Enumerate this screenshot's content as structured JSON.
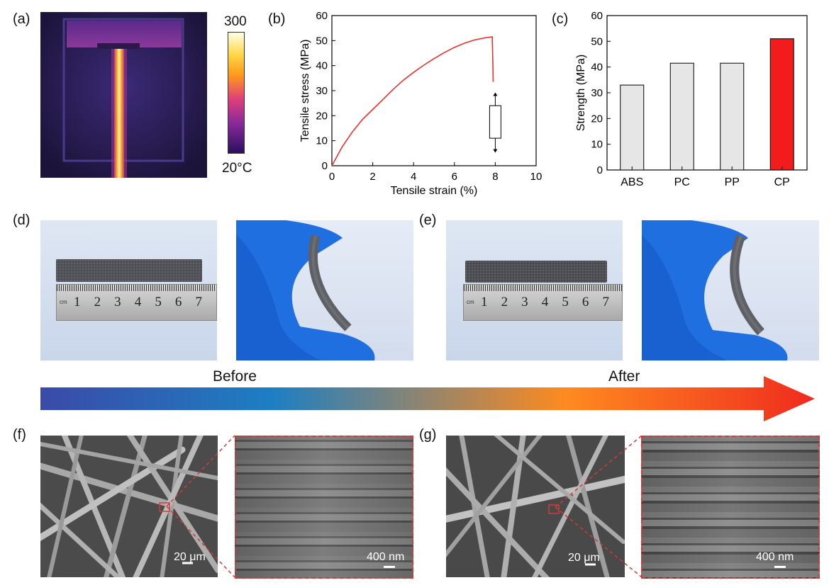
{
  "panels": {
    "a": {
      "label": "(a)",
      "colorbar": {
        "max_label": "300",
        "min_label": "20",
        "unit": "°C"
      }
    },
    "b": {
      "label": "(b)"
    },
    "c": {
      "label": "(c)"
    },
    "d": {
      "label": "(d)",
      "ruler": {
        "unit": "cm",
        "numbers": [
          "1",
          "2",
          "3",
          "4",
          "5",
          "6",
          "7"
        ]
      }
    },
    "e": {
      "label": "(e)",
      "ruler": {
        "unit": "cm",
        "numbers": [
          "1",
          "2",
          "3",
          "4",
          "5",
          "6",
          "7"
        ]
      }
    },
    "f": {
      "label": "(f)",
      "scale_bar_1": "20 μm",
      "scale_bar_2": "400 nm"
    },
    "g": {
      "label": "(g)",
      "scale_bar_1": "20 μm",
      "scale_bar_2": "400 nm"
    }
  },
  "arrow": {
    "before_label": "Before",
    "after_label": "After",
    "gradient_colors": [
      "#3b4aa8",
      "#1d7fc3",
      "#ff8a1f",
      "#ef2b1f"
    ]
  },
  "chart_data": [
    {
      "id": "b",
      "type": "line",
      "xlabel": "Tensile strain (%)",
      "ylabel": "Tensile stress (MPa)",
      "xlim": [
        0,
        10
      ],
      "ylim": [
        0,
        60
      ],
      "xticks": [
        "0",
        "2",
        "4",
        "6",
        "8",
        "10"
      ],
      "yticks": [
        "0",
        "10",
        "20",
        "30",
        "40",
        "50",
        "60"
      ],
      "series": [
        {
          "color": "#e8322b",
          "x": [
            0,
            0.5,
            1,
            1.5,
            2,
            2.5,
            3,
            3.5,
            4,
            4.5,
            5,
            5.5,
            6,
            6.5,
            7,
            7.5,
            7.85,
            7.88,
            7.9
          ],
          "y": [
            0,
            7.5,
            13.5,
            18.5,
            22.5,
            26.5,
            30.5,
            34.2,
            37.3,
            40.2,
            42.8,
            45.2,
            47.3,
            49.0,
            50.3,
            51.1,
            51.5,
            42,
            33.5
          ]
        }
      ],
      "inset_boxplot": {
        "x": 8.0,
        "whisker_low": 5.5,
        "q1": 11.0,
        "q3": 24.0,
        "whisker_high": 29.0
      }
    },
    {
      "id": "c",
      "type": "bar",
      "ylabel": "Strength (MPa)",
      "categories": [
        "ABS",
        "PC",
        "PP",
        "CP"
      ],
      "values": [
        33,
        41.5,
        41.5,
        51
      ],
      "colors": [
        "#e6e6e6",
        "#e6e6e6",
        "#e6e6e6",
        "#f21c1c"
      ],
      "ylim": [
        0,
        60
      ],
      "yticks": [
        "0",
        "10",
        "20",
        "30",
        "40",
        "50",
        "60"
      ]
    }
  ]
}
